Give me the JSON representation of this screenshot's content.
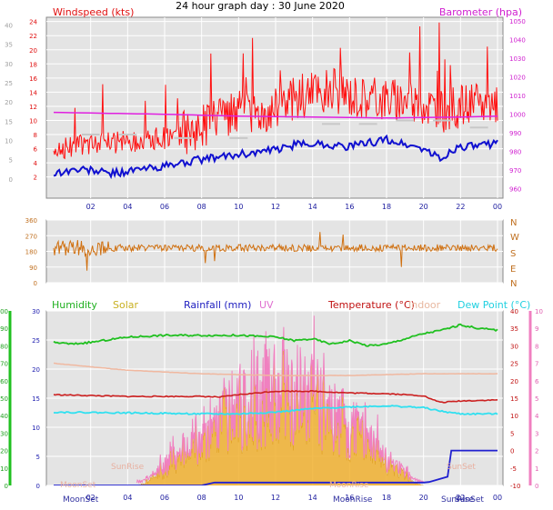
{
  "title": "24 hour graph day : 30 June 2020",
  "colors": {
    "wind_avg": "#1010d0",
    "wind_gust": "#ff1010",
    "wind_max": "#c8c8c8",
    "barometer": "#e020e0",
    "direction": "#d07010",
    "humidity": "#20c020",
    "solar": "#f0b030",
    "rainfall": "#2020d0",
    "uv": "#f080c0",
    "temperature": "#cc2020",
    "indoor": "#f0b8a0",
    "dew_point": "#30e0f0",
    "panel_bg": "#e4e4e4",
    "grid": "#ffffff"
  },
  "chart_data": [
    {
      "type": "line",
      "series_labels": {
        "left": "Windspeed (kts)",
        "right": "Barometer (hpa)"
      },
      "x_ticks": [
        "02",
        "04",
        "06",
        "08",
        "10",
        "12",
        "14",
        "16",
        "18",
        "20",
        "22",
        "00"
      ],
      "y_left": {
        "ticks": [
          0,
          5,
          10,
          15,
          20,
          25,
          30,
          35,
          40
        ],
        "range": [
          -5,
          42
        ]
      },
      "y_right": {
        "ticks": [
          960,
          970,
          980,
          990,
          1000,
          1010,
          1020,
          1030,
          1040,
          1050
        ],
        "range": [
          955,
          1052
        ]
      },
      "y_kts_scale": {
        "ticks": [
          2,
          4,
          6,
          8,
          10,
          12,
          14,
          16,
          18,
          20,
          22,
          24
        ],
        "range": [
          -1,
          24.6
        ]
      },
      "series": [
        {
          "key": "wind_avg",
          "hours": [
            0,
            1,
            2,
            3,
            4,
            5,
            6,
            7,
            8,
            9,
            10,
            11,
            12,
            13,
            14,
            15,
            16,
            17,
            18,
            19,
            20,
            21,
            21.5,
            22,
            23,
            24
          ],
          "values": [
            2.5,
            3,
            3,
            2.5,
            2.8,
            3.2,
            3.5,
            4,
            4.5,
            4.8,
            5.2,
            5.5,
            5.8,
            6.5,
            6.8,
            6.5,
            6.3,
            6.8,
            7.3,
            6.6,
            6.0,
            4.4,
            5.8,
            6.3,
            6.3,
            6.9
          ]
        },
        {
          "key": "wind_gust_level",
          "hours": [
            0,
            2,
            4,
            6,
            8,
            9,
            10,
            12,
            13,
            14,
            15,
            16,
            17,
            18,
            19,
            20,
            21,
            22,
            23,
            24
          ],
          "values": [
            6,
            6.5,
            7,
            7.5,
            9,
            10,
            11,
            11.5,
            13,
            14,
            14.5,
            13.5,
            13,
            13,
            13,
            12.5,
            11,
            12,
            12,
            13
          ]
        },
        {
          "key": "barometer",
          "hours": [
            0,
            6,
            10,
            14,
            18,
            22,
            24
          ],
          "values": [
            1001,
            1000,
            999,
            998.5,
            998,
            998.5,
            999
          ]
        },
        {
          "key": "wind_max",
          "hours": [
            2,
            4,
            7,
            10,
            13,
            15,
            17,
            19,
            21,
            23
          ],
          "values": [
            8.0,
            8.0,
            7.5,
            7.5,
            10.5,
            9.5,
            9.5,
            10.0,
            10.0,
            9.0
          ]
        }
      ]
    },
    {
      "type": "line",
      "series_labels": {},
      "x_ticks": [
        "02",
        "04",
        "06",
        "08",
        "10",
        "12",
        "14",
        "16",
        "18",
        "20",
        "22",
        "00"
      ],
      "y_left": {
        "ticks": [
          0,
          90,
          180,
          270,
          360
        ],
        "range": [
          0,
          360
        ]
      },
      "y_right": {
        "ticks": [
          "N",
          "W",
          "S",
          "E",
          "N"
        ]
      },
      "series": [
        {
          "key": "direction",
          "hours": [
            0,
            24
          ],
          "values": [
            200,
            200
          ]
        }
      ]
    },
    {
      "type": "area",
      "series_labels": {
        "humidity": "Humidity",
        "solar": "Solar",
        "rainfall": "Rainfall (mm)",
        "uv": "UV",
        "temperature": "Temperature (°C)",
        "indoor": "Indoor",
        "dew_point": "Dew Point (°C)"
      },
      "x_ticks": [
        "02",
        "04",
        "06",
        "08",
        "10",
        "12",
        "14",
        "16",
        "18",
        "20",
        "22",
        "00"
      ],
      "y_humidity": {
        "ticks": [
          0,
          10,
          20,
          30,
          40,
          50,
          60,
          70,
          80,
          90,
          100
        ],
        "range": [
          0,
          100
        ]
      },
      "y_rain": {
        "ticks": [
          0,
          5,
          10,
          15,
          20,
          25,
          30
        ],
        "range": [
          0,
          30
        ]
      },
      "y_temp": {
        "ticks": [
          -10,
          -5,
          0,
          5,
          10,
          15,
          20,
          25,
          30,
          35,
          40
        ],
        "range": [
          -10,
          40
        ]
      },
      "y_uv": {
        "ticks": [
          0,
          1,
          2,
          3,
          4,
          5,
          6,
          7,
          8,
          9,
          10
        ],
        "range": [
          0,
          10
        ]
      },
      "annotations": [
        "MoonSet",
        "SunRise",
        "MoonRise",
        "SunSet"
      ],
      "series": [
        {
          "key": "humidity",
          "hours": [
            0,
            1,
            2,
            4,
            6,
            8,
            10,
            12,
            13,
            14,
            15,
            16,
            17,
            18,
            19,
            20,
            21,
            22,
            23,
            24
          ],
          "values": [
            82,
            81,
            82,
            85,
            86,
            86,
            86,
            85,
            83,
            84,
            81,
            83,
            80,
            81,
            84,
            87,
            89,
            92,
            90,
            89
          ]
        },
        {
          "key": "temperature",
          "hours": [
            0,
            4,
            8,
            9,
            10,
            12,
            14,
            16,
            18,
            20,
            20.5,
            21,
            22,
            24
          ],
          "values": [
            16,
            15.5,
            15.5,
            15.3,
            16,
            17,
            17,
            16.5,
            16.3,
            15.7,
            14.5,
            13.8,
            14.2,
            14.5
          ]
        },
        {
          "key": "dew_point",
          "hours": [
            0,
            4,
            8,
            10,
            12,
            14,
            16,
            18,
            20,
            21,
            22,
            24
          ],
          "values": [
            11,
            10.8,
            10.5,
            10.5,
            11,
            12,
            12.5,
            12.8,
            12.3,
            11.2,
            10.5,
            10.5
          ]
        },
        {
          "key": "indoor",
          "hours": [
            0,
            4,
            8,
            12,
            16,
            20,
            24
          ],
          "values": [
            25,
            23,
            22,
            21.5,
            21.5,
            22,
            22
          ]
        },
        {
          "key": "rainfall",
          "hours": [
            0,
            8,
            8.7,
            20,
            20.3,
            21.3,
            21.5,
            24
          ],
          "values": [
            0,
            0,
            0.5,
            0.5,
            0.6,
            1.5,
            6,
            6
          ]
        }
      ]
    }
  ]
}
